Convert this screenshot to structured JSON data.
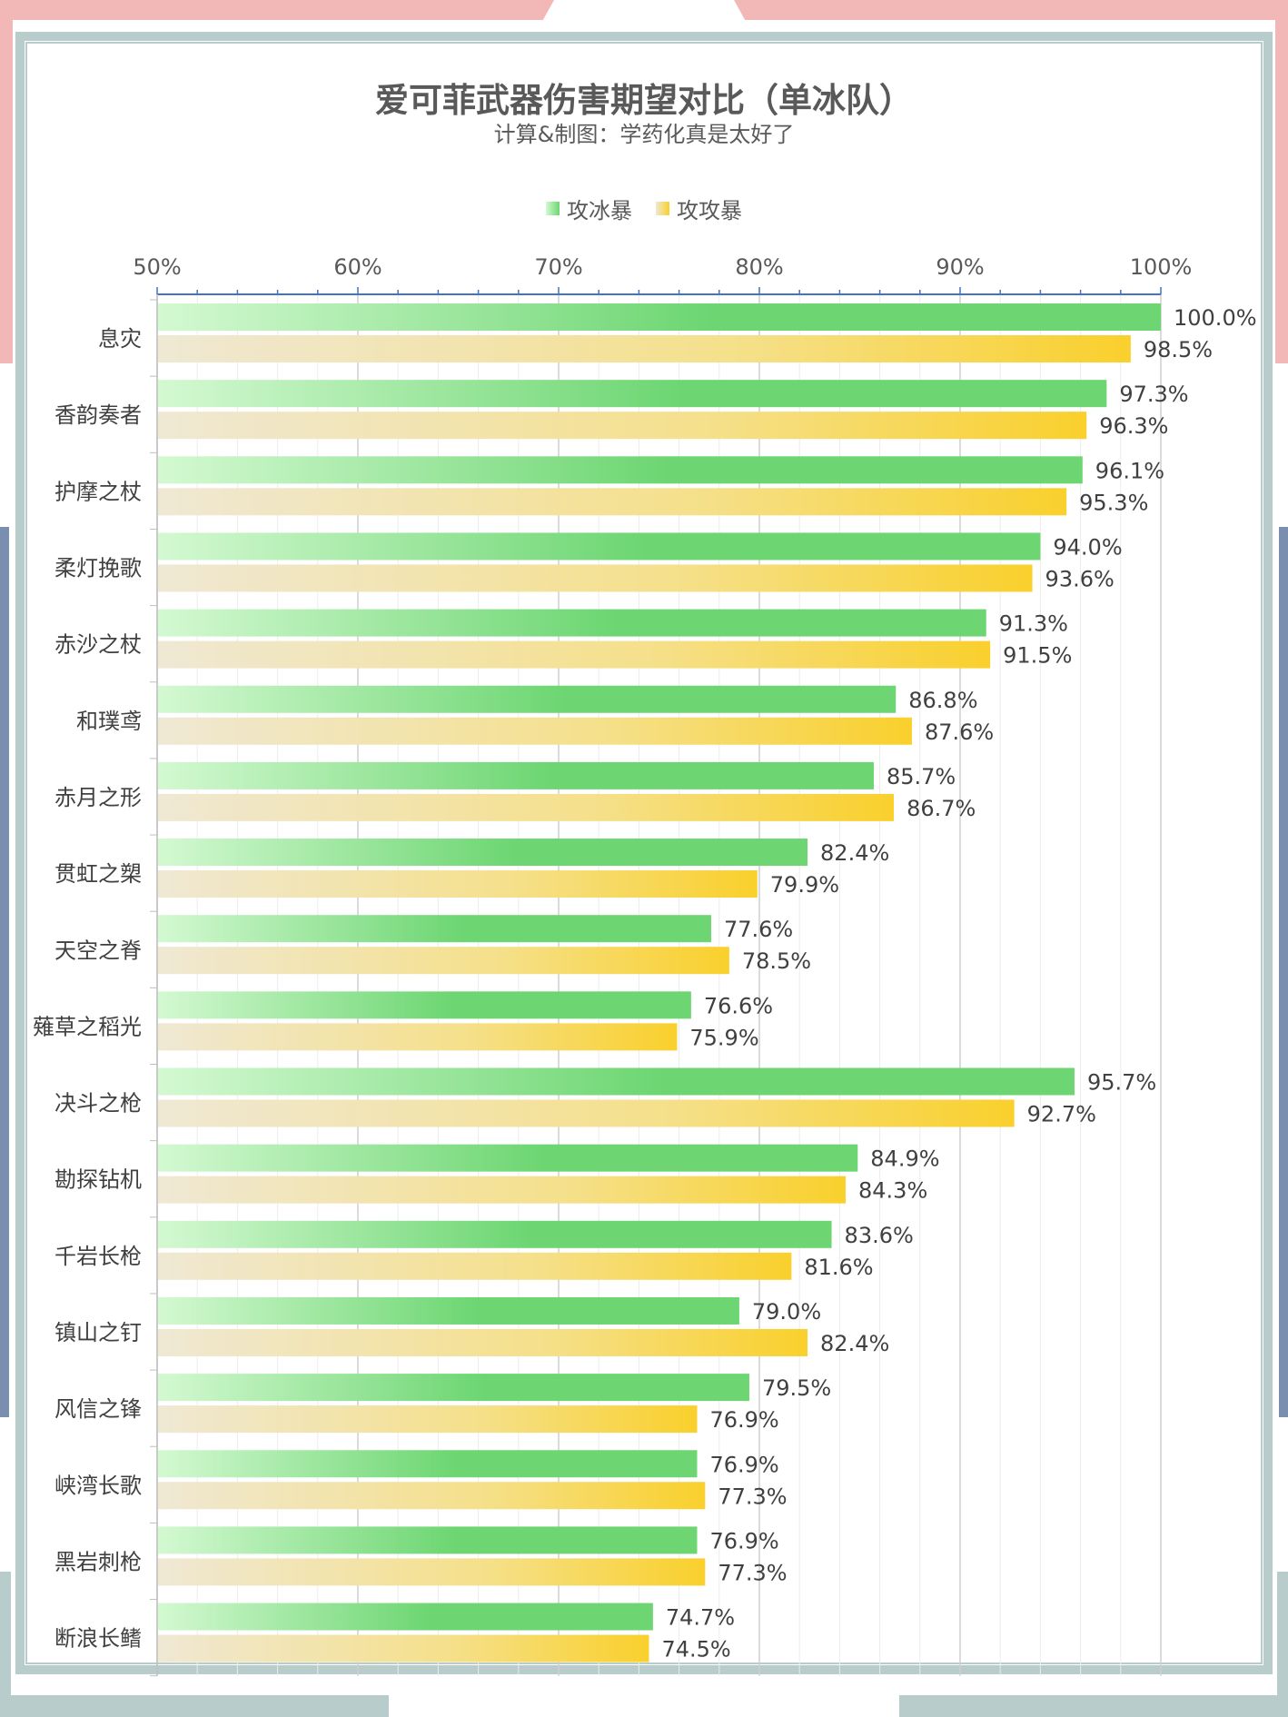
{
  "title": "爱可菲武器伤害期望对比（单冰队）",
  "subtitle": "计算&制图：学药化真是太好了",
  "colors": {
    "series1_start": "#d4f9d2",
    "series1_end": "#6dd672",
    "series2_start": "#efe8d4",
    "series2_end": "#f9d02c",
    "axis": "#4472c4",
    "grid": "#d9d9d9",
    "text": "#404040",
    "frame": "#b9cccc",
    "accent_pink": "#f2b8b8",
    "accent_blue": "#7a8fb0"
  },
  "chart_data": {
    "type": "bar",
    "orientation": "horizontal",
    "title": "爱可菲武器伤害期望对比（单冰队）",
    "subtitle": "计算&制图：学药化真是太好了",
    "xlabel": "",
    "ylabel": "",
    "xlim": [
      50,
      100
    ],
    "x_ticks": [
      "50%",
      "60%",
      "70%",
      "80%",
      "90%",
      "100%"
    ],
    "grid": true,
    "legend_position": "top",
    "categories": [
      "息灾",
      "香韵奏者",
      "护摩之杖",
      "柔灯挽歌",
      "赤沙之杖",
      "和璞鸢",
      "赤月之形",
      "贯虹之槊",
      "天空之脊",
      "薙草之稻光",
      "决斗之枪",
      "勘探钻机",
      "千岩长枪",
      "镇山之钉",
      "风信之锋",
      "峡湾长歌",
      "黑岩刺枪",
      "断浪长鳍"
    ],
    "series": [
      {
        "name": "攻冰暴",
        "values": [
          100.0,
          97.3,
          96.1,
          94.0,
          91.3,
          86.8,
          85.7,
          82.4,
          77.6,
          76.6,
          95.7,
          84.9,
          83.6,
          79.0,
          79.5,
          76.9,
          76.9,
          74.7
        ],
        "labels": [
          "100.0%",
          "97.3%",
          "96.1%",
          "94.0%",
          "91.3%",
          "86.8%",
          "85.7%",
          "82.4%",
          "77.6%",
          "76.6%",
          "95.7%",
          "84.9%",
          "83.6%",
          "79.0%",
          "79.5%",
          "76.9%",
          "76.9%",
          "74.7%"
        ]
      },
      {
        "name": "攻攻暴",
        "values": [
          98.5,
          96.3,
          95.3,
          93.6,
          91.5,
          87.6,
          86.7,
          79.9,
          78.5,
          75.9,
          92.7,
          84.3,
          81.6,
          82.4,
          76.9,
          77.3,
          77.3,
          74.5
        ],
        "labels": [
          "98.5%",
          "96.3%",
          "95.3%",
          "93.6%",
          "91.5%",
          "87.6%",
          "86.7%",
          "79.9%",
          "78.5%",
          "75.9%",
          "92.7%",
          "84.3%",
          "81.6%",
          "82.4%",
          "76.9%",
          "77.3%",
          "77.3%",
          "74.5%"
        ]
      }
    ]
  }
}
